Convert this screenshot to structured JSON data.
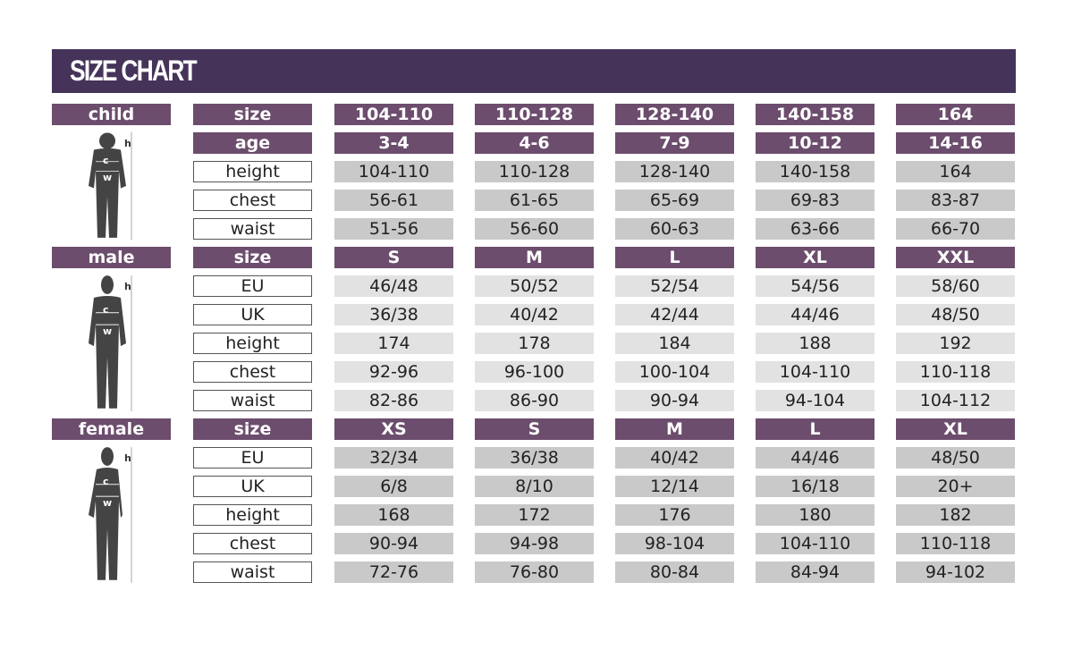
{
  "title": "SIZE CHART",
  "colors": {
    "title_bar": "#45335a",
    "header_cell": "#6c4d6d",
    "value_cell": "#c9c9c9"
  },
  "sections": [
    {
      "name": "child",
      "figure": "child-silhouette-icon",
      "figure_labels": {
        "h": "h",
        "c": "c",
        "w": "w"
      },
      "rows": [
        {
          "label": "size",
          "header": true,
          "values": [
            "104-110",
            "110-128",
            "128-140",
            "140-158",
            "164"
          ]
        },
        {
          "label": "age",
          "header": true,
          "values": [
            "3-4",
            "4-6",
            "7-9",
            "10-12",
            "14-16"
          ]
        },
        {
          "label": "height",
          "values": [
            "104-110",
            "110-128",
            "128-140",
            "140-158",
            "164"
          ]
        },
        {
          "label": "chest",
          "values": [
            "56-61",
            "61-65",
            "65-69",
            "69-83",
            "83-87"
          ]
        },
        {
          "label": "waist",
          "values": [
            "51-56",
            "56-60",
            "60-63",
            "63-66",
            "66-70"
          ]
        }
      ]
    },
    {
      "name": "male",
      "figure": "male-silhouette-icon",
      "figure_labels": {
        "h": "h",
        "c": "c",
        "w": "w"
      },
      "rows": [
        {
          "label": "size",
          "header": true,
          "values": [
            "S",
            "M",
            "L",
            "XL",
            "XXL"
          ]
        },
        {
          "label": "EU",
          "values": [
            "46/48",
            "50/52",
            "52/54",
            "54/56",
            "58/60"
          ]
        },
        {
          "label": "UK",
          "values": [
            "36/38",
            "40/42",
            "42/44",
            "44/46",
            "48/50"
          ]
        },
        {
          "label": "height",
          "values": [
            "174",
            "178",
            "184",
            "188",
            "192"
          ]
        },
        {
          "label": "chest",
          "values": [
            "92-96",
            "96-100",
            "100-104",
            "104-110",
            "110-118"
          ]
        },
        {
          "label": "waist",
          "values": [
            "82-86",
            "86-90",
            "90-94",
            "94-104",
            "104-112"
          ]
        }
      ]
    },
    {
      "name": "female",
      "figure": "female-silhouette-icon",
      "figure_labels": {
        "h": "h",
        "c": "c",
        "w": "w"
      },
      "rows": [
        {
          "label": "size",
          "header": true,
          "values": [
            "XS",
            "S",
            "M",
            "L",
            "XL"
          ]
        },
        {
          "label": "EU",
          "values": [
            "32/34",
            "36/38",
            "40/42",
            "44/46",
            "48/50"
          ]
        },
        {
          "label": "UK",
          "values": [
            "6/8",
            "8/10",
            "12/14",
            "16/18",
            "20+"
          ]
        },
        {
          "label": "height",
          "values": [
            "168",
            "172",
            "176",
            "180",
            "182"
          ]
        },
        {
          "label": "chest",
          "values": [
            "90-94",
            "94-98",
            "98-104",
            "104-110",
            "110-118"
          ]
        },
        {
          "label": "waist",
          "values": [
            "72-76",
            "76-80",
            "80-84",
            "84-94",
            "94-102"
          ]
        }
      ]
    }
  ]
}
